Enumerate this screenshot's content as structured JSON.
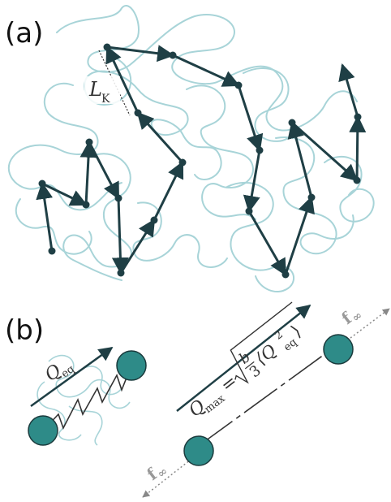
{
  "panel_a": {
    "label": "(a)",
    "kuhn_length_label": "L",
    "kuhn_length_sub": "K"
  },
  "panel_b": {
    "label": "(b)",
    "q_eq_label": "Q",
    "q_eq_sub": "eq",
    "q_max_label": "Q",
    "q_max_sub": "max",
    "equals": "=",
    "fraction_num": "b",
    "fraction_den": "3",
    "avg_open": "⟨Q",
    "avg_sub": "eq",
    "avg_sup": "2",
    "avg_close": "⟩",
    "force_label": "f",
    "force_sub": "∞"
  },
  "colors": {
    "chain": "#1f3f45",
    "coil": "#a8d4d8",
    "bead_fill": "#2e8b88",
    "bead_stroke": "#1a3a3c",
    "dashed": "#555555",
    "force_arrow": "#888888"
  }
}
